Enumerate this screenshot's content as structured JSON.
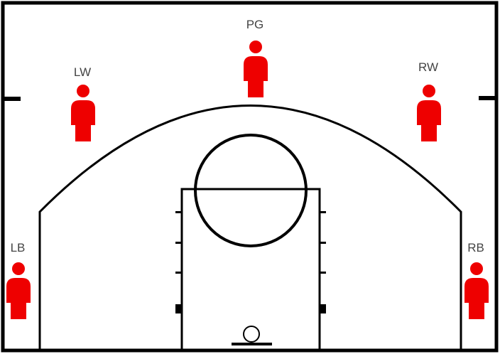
{
  "court": {
    "line_color": "#000000",
    "background": "#ffffff"
  },
  "player_color": "#ee0000",
  "players": [
    {
      "id": "pg",
      "label": "PG"
    },
    {
      "id": "lw",
      "label": "LW"
    },
    {
      "id": "rw",
      "label": "RW"
    },
    {
      "id": "lb",
      "label": "LB"
    },
    {
      "id": "rb",
      "label": "RB"
    }
  ]
}
